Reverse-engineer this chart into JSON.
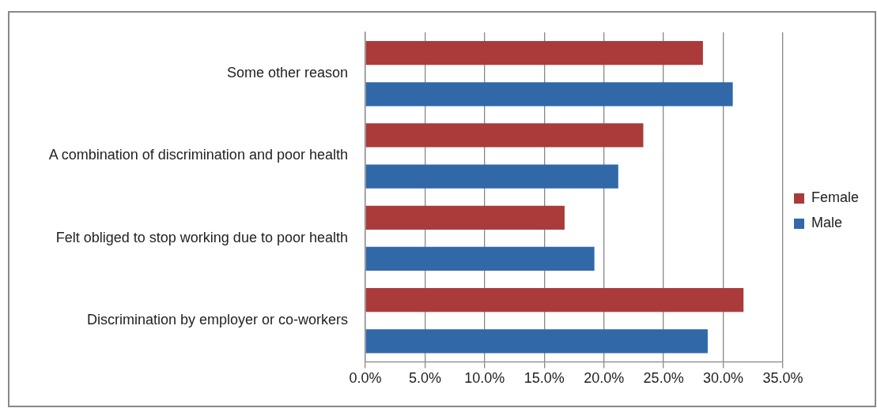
{
  "chart_data": {
    "type": "bar",
    "orientation": "horizontal",
    "categories": [
      "Some other reason",
      "A combination of discrimination and poor health",
      "Felt obliged to stop working due to poor health",
      "Discrimination by employer or co-workers"
    ],
    "series": [
      {
        "name": "Female",
        "color": "#aa3b3a",
        "values": [
          28.3,
          23.3,
          16.7,
          31.7
        ]
      },
      {
        "name": "Male",
        "color": "#3169a8",
        "values": [
          30.8,
          21.2,
          19.2,
          28.7
        ]
      }
    ],
    "xlim": [
      0,
      35
    ],
    "xticks": [
      {
        "value": 0,
        "label": "0.0%"
      },
      {
        "value": 5,
        "label": "5.0%"
      },
      {
        "value": 10,
        "label": "10.0%"
      },
      {
        "value": 15,
        "label": "15.0%"
      },
      {
        "value": 20,
        "label": "20.0%"
      },
      {
        "value": 25,
        "label": "25.0%"
      },
      {
        "value": 30,
        "label": "30.0%"
      },
      {
        "value": 35,
        "label": "35.0%"
      }
    ],
    "grid": "x",
    "legend": "right"
  }
}
